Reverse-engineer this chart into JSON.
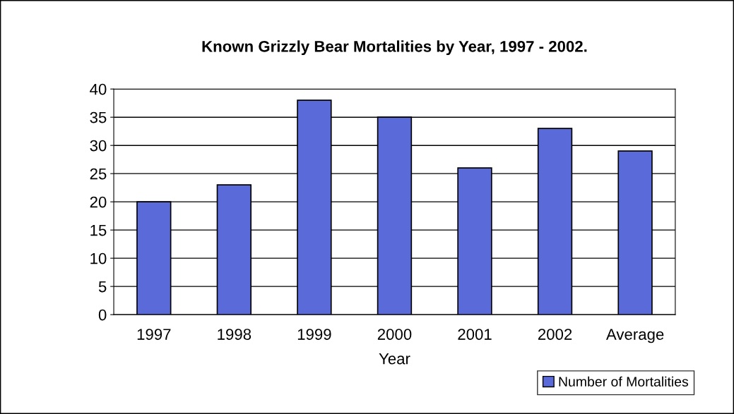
{
  "chart_data": {
    "type": "bar",
    "title": "Known Grizzly Bear Mortalities by Year, 1997 - 2002.",
    "xlabel": "Year",
    "categories": [
      "1997",
      "1998",
      "1999",
      "2000",
      "2001",
      "2002",
      "Average"
    ],
    "series": [
      {
        "name": "Number of Mortalities",
        "color": "#5a6ad8",
        "values": [
          20,
          23,
          38,
          35,
          26,
          33,
          29
        ]
      }
    ],
    "ylim": [
      0,
      40
    ],
    "yticks": [
      0,
      5,
      10,
      15,
      20,
      25,
      30,
      35,
      40
    ],
    "grid": "y",
    "legend": "bottom right"
  }
}
